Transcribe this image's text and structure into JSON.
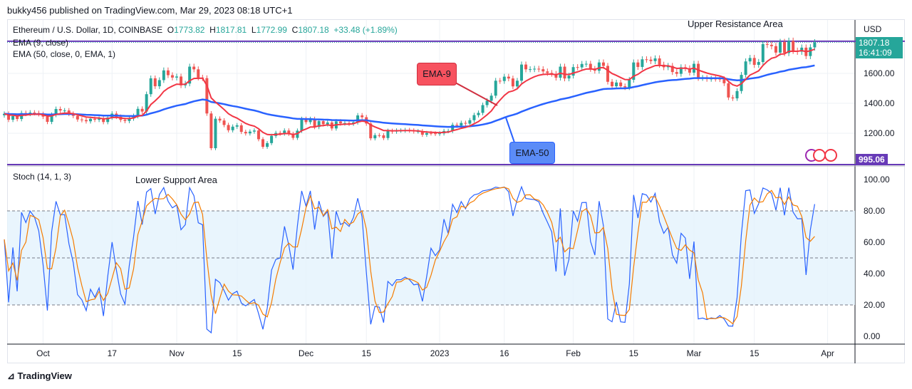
{
  "header": {
    "published": "bukky456 published on TradingView.com, Mar 29, 2023 08:18 UTC+1"
  },
  "legend": {
    "symbol": "Ethereum / U.S. Dollar, 1D, COINBASE",
    "o_label": "O",
    "o": "1773.82",
    "h_label": "H",
    "h": "1817.81",
    "l_label": "L",
    "l": "1772.99",
    "c_label": "C",
    "c": "1807.18",
    "change": "+33.48 (+1.89%)",
    "ema9": "EMA (9, close)",
    "ema50": "EMA (50, close, 0, EMA, 1)",
    "stoch": "Stoch (14, 1, 3)"
  },
  "annotations": {
    "upper": "Upper Resistance Area",
    "lower": "Lower Support Area",
    "ema9": "EMA-9",
    "ema50": "EMA-50"
  },
  "price_axis": {
    "currency": "USD",
    "last_price": "1807.18",
    "countdown": "16:41:09",
    "levels": [
      "1600.00",
      "1400.00",
      "1200.00"
    ],
    "support_tag": "995.06"
  },
  "stoch_axis": {
    "levels": [
      "100.00",
      "80.00",
      "60.00",
      "40.00",
      "20.00",
      "0.00"
    ]
  },
  "time_axis": [
    {
      "label": "Oct",
      "day": 9
    },
    {
      "label": "17",
      "day": 25
    },
    {
      "label": "Nov",
      "day": 40
    },
    {
      "label": "15",
      "day": 54
    },
    {
      "label": "Dec",
      "day": 70
    },
    {
      "label": "15",
      "day": 84
    },
    {
      "label": "2023",
      "day": 101
    },
    {
      "label": "16",
      "day": 116
    },
    {
      "label": "Feb",
      "day": 132
    },
    {
      "label": "15",
      "day": 146
    },
    {
      "label": "Mar",
      "day": 160
    },
    {
      "label": "15",
      "day": 174
    },
    {
      "label": "Apr",
      "day": 191
    }
  ],
  "footer": {
    "logo": "TradingView"
  },
  "colors": {
    "up": "#26a69a",
    "down": "#ef5350",
    "ema9": "#f23645",
    "ema50": "#2962ff",
    "stochK": "#2962ff",
    "stochD": "#f57c00",
    "level": "#673ab7"
  },
  "chart_data": {
    "type": "candlestick",
    "start_date": "2022-09-22",
    "resistance": 1815,
    "support": 995.06,
    "ylim": [
      995,
      1830
    ],
    "closes": [
      1330,
      1290,
      1315,
      1295,
      1335,
      1330,
      1338,
      1335,
      1328,
      1311,
      1276,
      1323,
      1362,
      1352,
      1352,
      1330,
      1316,
      1292,
      1288,
      1280,
      1296,
      1290,
      1297,
      1275,
      1305,
      1331,
      1310,
      1289,
      1282,
      1299,
      1315,
      1363,
      1345,
      1461,
      1567,
      1514,
      1555,
      1620,
      1588,
      1572,
      1579,
      1520,
      1532,
      1645,
      1627,
      1572,
      1568,
      1332,
      1100,
      1297,
      1285,
      1255,
      1220,
      1244,
      1253,
      1209,
      1199,
      1211,
      1218,
      1160,
      1109,
      1134,
      1182,
      1202,
      1198,
      1218,
      1196,
      1169,
      1217,
      1295,
      1274,
      1295,
      1242,
      1281,
      1260,
      1272,
      1232,
      1279,
      1266,
      1268,
      1264,
      1273,
      1319,
      1307,
      1265,
      1166,
      1187,
      1186,
      1168,
      1216,
      1211,
      1218,
      1218,
      1221,
      1218,
      1212,
      1213,
      1190,
      1201,
      1199,
      1196,
      1199,
      1215,
      1215,
      1256,
      1251,
      1269,
      1264,
      1287,
      1321,
      1336,
      1388,
      1417,
      1451,
      1551,
      1549,
      1578,
      1566,
      1513,
      1551,
      1659,
      1627,
      1628,
      1631,
      1628,
      1613,
      1603,
      1597,
      1571,
      1645,
      1566,
      1585,
      1642,
      1640,
      1663,
      1664,
      1630,
      1618,
      1673,
      1650,
      1544,
      1514,
      1539,
      1514,
      1507,
      1557,
      1673,
      1643,
      1694,
      1692,
      1682,
      1700,
      1658,
      1641,
      1650,
      1609,
      1597,
      1641,
      1634,
      1605,
      1664,
      1569,
      1570,
      1563,
      1565,
      1564,
      1561,
      1534,
      1439,
      1433,
      1482,
      1590,
      1680,
      1703,
      1657,
      1676,
      1796,
      1791,
      1782,
      1739,
      1809,
      1736,
      1817,
      1751,
      1745,
      1772,
      1716,
      1773.82,
      1807.18
    ]
  }
}
